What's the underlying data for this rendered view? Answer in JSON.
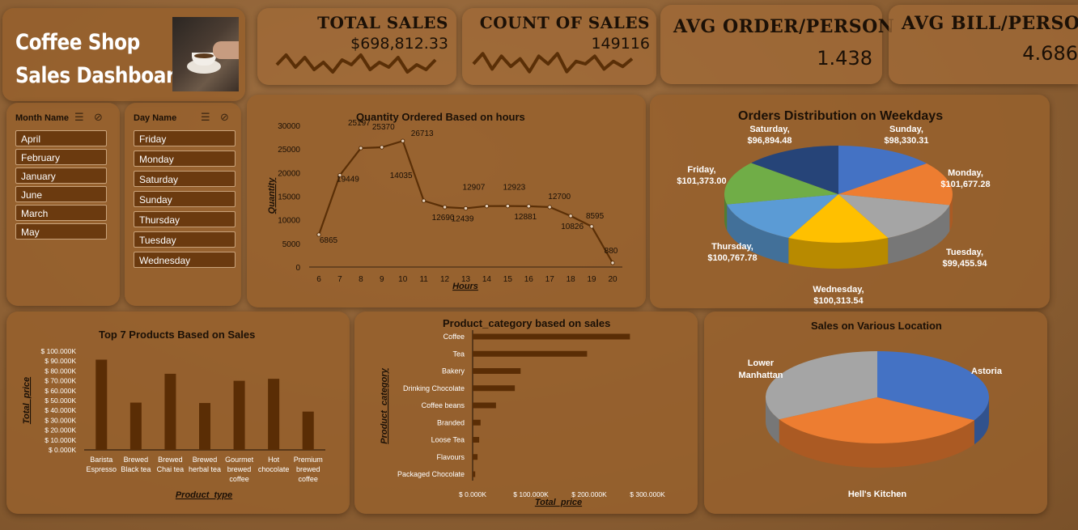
{
  "header": {
    "title_line1": "Coffee Shop",
    "title_line2": "Sales Dashboard"
  },
  "kpis": [
    {
      "label": "TOTAL SALES",
      "value": "$698,812.33",
      "sparkline": [
        0.5,
        0.9,
        0.4,
        0.8,
        0.3,
        0.6,
        0.2,
        0.7,
        0.5,
        0.9,
        0.3,
        0.6,
        0.4,
        0.8,
        0.2,
        0.5,
        0.3,
        0.7
      ]
    },
    {
      "label": "COUNT OF SALES",
      "value": "149116",
      "sparkline": [
        0.5,
        0.9,
        0.3,
        0.8,
        0.4,
        0.7,
        0.2,
        0.8,
        0.5,
        0.9,
        0.2,
        0.6,
        0.5,
        0.8,
        0.3,
        0.6,
        0.4,
        0.7
      ]
    },
    {
      "label": "AVG ORDER/PERSON",
      "value": "1.438"
    },
    {
      "label": "AVG BILL/PERSON",
      "value": "4.686"
    }
  ],
  "slicers": {
    "month": {
      "header": "Month Name",
      "items": [
        "April",
        "February",
        "January",
        "June",
        "March",
        "May"
      ]
    },
    "day": {
      "header": "Day Name",
      "items": [
        "Friday",
        "Monday",
        "Saturday",
        "Sunday",
        "Thursday",
        "Tuesday",
        "Wednesday"
      ]
    }
  },
  "chart_data": [
    {
      "type": "line",
      "title": "Quantity  Ordered Based on hours",
      "xlabel": "Hours",
      "ylabel": "Quantity",
      "x": [
        6,
        7,
        8,
        9,
        10,
        11,
        12,
        13,
        14,
        15,
        16,
        17,
        18,
        19,
        20
      ],
      "values": [
        6865,
        19449,
        25197,
        25370,
        26713,
        14035,
        12690,
        12439,
        12907,
        12923,
        12881,
        12700,
        10826,
        8595,
        880
      ],
      "ylim": [
        0,
        30000
      ],
      "yticks": [
        0,
        5000,
        10000,
        15000,
        20000,
        25000,
        30000
      ],
      "colors": {
        "line": "#5a2f07"
      }
    },
    {
      "type": "pie",
      "title": "Orders Distribution on Weekdays",
      "labels": [
        "Sunday,",
        "Monday,",
        "Tuesday,",
        "Wednesday,",
        "Thursday,",
        "Friday,",
        "Saturday,"
      ],
      "value_labels": [
        "$98,330.31",
        "$101,677.28",
        "$99,455.94",
        "$100,313.54",
        "$100,767.78",
        "$101,373.00",
        "$96,894.48"
      ],
      "values": [
        98330.31,
        101677.28,
        99455.94,
        100313.54,
        100767.78,
        101373.0,
        96894.48
      ],
      "colors": [
        "#4472c4",
        "#ed7d31",
        "#a5a5a5",
        "#ffc000",
        "#5b9bd5",
        "#70ad47",
        "#264478"
      ]
    },
    {
      "type": "bar",
      "title": "Top 7 Products Based on Sales",
      "xlabel": "Product_type",
      "ylabel": "Total_price",
      "categories": [
        [
          "Barista",
          "Espresso"
        ],
        [
          "Brewed",
          "Black tea"
        ],
        [
          "Brewed",
          "Chai tea"
        ],
        [
          "Brewed",
          "herbal tea"
        ],
        [
          "Gourmet",
          "brewed",
          "coffee"
        ],
        [
          "Hot",
          "chocolate"
        ],
        [
          "Premium",
          "brewed",
          "coffee"
        ]
      ],
      "values": [
        91400,
        47900,
        77100,
        47500,
        70000,
        72000,
        38800
      ],
      "ylim": [
        0,
        100000
      ],
      "yticks": [
        "$ 0.000K",
        "$ 10.000K",
        "$ 20.000K",
        "$ 30.000K",
        "$ 40.000K",
        "$ 50.000K",
        "$ 60.000K",
        "$ 70.000K",
        "$ 80.000K",
        "$ 90.000K",
        "$ 100.000K"
      ],
      "colors": {
        "bar": "#5a2d05"
      }
    },
    {
      "type": "bar",
      "orientation": "horizontal",
      "title": "Product_category based on sales",
      "xlabel": "Total_price",
      "ylabel": "Product_category",
      "categories": [
        "Coffee",
        "Tea",
        "Bakery",
        "Drinking Chocolate",
        "Coffee beans",
        "Branded",
        "Loose Tea",
        "Flavours",
        "Packaged Chocolate"
      ],
      "values": [
        269952,
        196406,
        82316,
        72416,
        40085,
        13607,
        11213,
        8408,
        4407
      ],
      "xlim": [
        0,
        300000
      ],
      "xticks": [
        "$ 0.000K",
        "$ 100.000K",
        "$ 200.000K",
        "$ 300.000K"
      ],
      "colors": {
        "bar": "#5a2d05"
      }
    },
    {
      "type": "pie",
      "title": "Sales on Various Location",
      "labels": [
        "Astoria",
        "Hell's Kitchen",
        "Lower Manhattan"
      ],
      "values": [
        232243.91,
        236511.17,
        230057.25
      ],
      "colors": [
        "#4472c4",
        "#ed7d31",
        "#a5a5a5"
      ]
    }
  ]
}
